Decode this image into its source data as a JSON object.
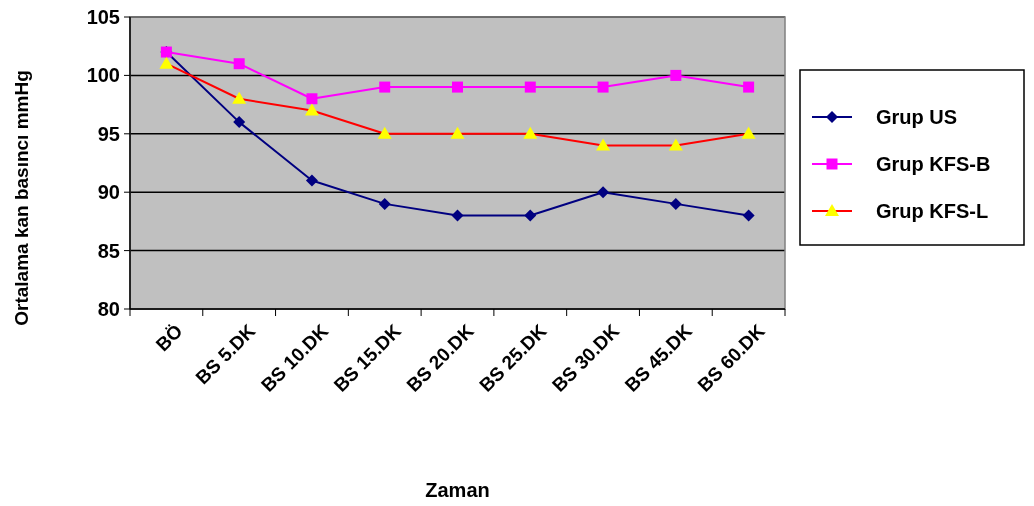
{
  "chart_data": {
    "type": "line",
    "xlabel": "Zaman",
    "ylabel": "Ortalama kan basıncı mmHg",
    "categories": [
      "BÖ",
      "BS 5.DK",
      "BS 10.DK",
      "BS 15.DK",
      "BS 20.DK",
      "BS 25.DK",
      "BS 30.DK",
      "BS 45.DK",
      "BS 60.DK"
    ],
    "series": [
      {
        "name": "Grup US",
        "color": "#000080",
        "marker": "diamond",
        "values": [
          102,
          96,
          91,
          89,
          88,
          88,
          90,
          89,
          88
        ]
      },
      {
        "name": "Grup KFS-B",
        "color": "#ff00ff",
        "marker": "square",
        "values": [
          102,
          101,
          98,
          99,
          99,
          99,
          99,
          100,
          99
        ]
      },
      {
        "name": "Grup KFS-L",
        "color": "#ff0000",
        "colors": [
          "#ffff00",
          "#ffff00",
          "#ffff00",
          "#ffff00",
          "#ffff00",
          "#ffff00",
          "#ffff00",
          "#ffff00",
          "#ffff00"
        ],
        "marker": "triangle",
        "values": [
          101,
          98,
          97,
          95,
          95,
          95,
          94,
          94,
          95
        ]
      }
    ],
    "ylim": [
      80,
      105
    ],
    "yticks": [
      80,
      85,
      90,
      95,
      100,
      105
    ],
    "grid": "y",
    "legend": "right",
    "line_style": "solid"
  }
}
